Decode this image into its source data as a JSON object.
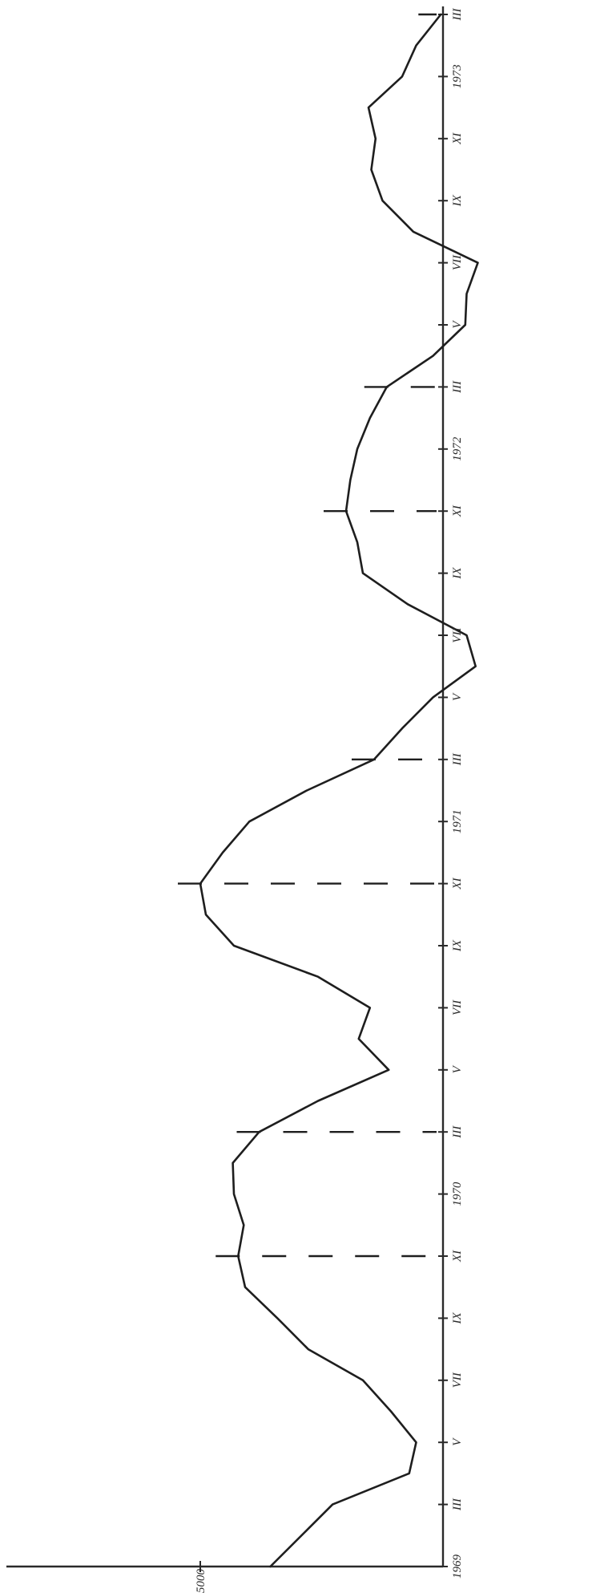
{
  "chart_data": {
    "type": "line",
    "title": "",
    "xlabel": "",
    "ylabel": "",
    "orientation": "rotated-90-ccw",
    "grid": false,
    "y_ticks": [
      {
        "label": "5000",
        "value": 5000
      }
    ],
    "x_tick_labels": [
      {
        "label": "1969",
        "x": 0
      },
      {
        "label": "III",
        "x": 2
      },
      {
        "label": "V",
        "x": 4
      },
      {
        "label": "VII",
        "x": 6
      },
      {
        "label": "IX",
        "x": 8
      },
      {
        "label": "XI",
        "x": 10
      },
      {
        "label": "1970",
        "x": 12
      },
      {
        "label": "III",
        "x": 14
      },
      {
        "label": "V",
        "x": 16
      },
      {
        "label": "VII",
        "x": 18
      },
      {
        "label": "IX",
        "x": 20
      },
      {
        "label": "XI",
        "x": 22
      },
      {
        "label": "1971",
        "x": 24
      },
      {
        "label": "III",
        "x": 26
      },
      {
        "label": "V",
        "x": 28
      },
      {
        "label": "VII",
        "x": 30
      },
      {
        "label": "IX",
        "x": 32
      },
      {
        "label": "XI",
        "x": 34
      },
      {
        "label": "1972",
        "x": 36
      },
      {
        "label": "III",
        "x": 38
      },
      {
        "label": "V",
        "x": 40
      },
      {
        "label": "VII",
        "x": 42
      },
      {
        "label": "IX",
        "x": 44
      },
      {
        "label": "XI",
        "x": 46
      },
      {
        "label": "1973",
        "x": 48
      },
      {
        "label": "III",
        "x": 50
      }
    ],
    "series": [
      {
        "x": [
          0,
          2,
          3,
          4,
          5,
          6,
          7,
          8,
          9,
          10,
          11,
          12,
          13,
          14,
          15,
          16,
          17,
          18,
          19,
          20,
          21,
          22,
          23,
          24,
          25,
          26,
          27,
          28,
          29,
          30,
          31,
          32,
          33,
          34,
          35,
          36,
          37,
          38,
          39,
          40,
          41,
          42,
          43,
          44,
          45,
          46,
          47,
          48,
          49,
          50
        ],
        "y": [
          5250,
          5472,
          5745,
          5770,
          5680,
          5580,
          5385,
          5275,
          5160,
          5135,
          5155,
          5120,
          5116,
          5210,
          5420,
          5672,
          5565,
          5605,
          5420,
          5120,
          5020,
          5000,
          5080,
          5175,
          5380,
          5620,
          5720,
          5830,
          5982,
          5950,
          5740,
          5580,
          5560,
          5520,
          5535,
          5560,
          5605,
          5665,
          5830,
          5945,
          5950,
          5990,
          5760,
          5650,
          5610,
          5625,
          5600,
          5720,
          5770,
          5858
        ]
      }
    ],
    "marked_x": [
      10,
      14,
      22,
      26,
      34,
      38,
      50
    ]
  }
}
